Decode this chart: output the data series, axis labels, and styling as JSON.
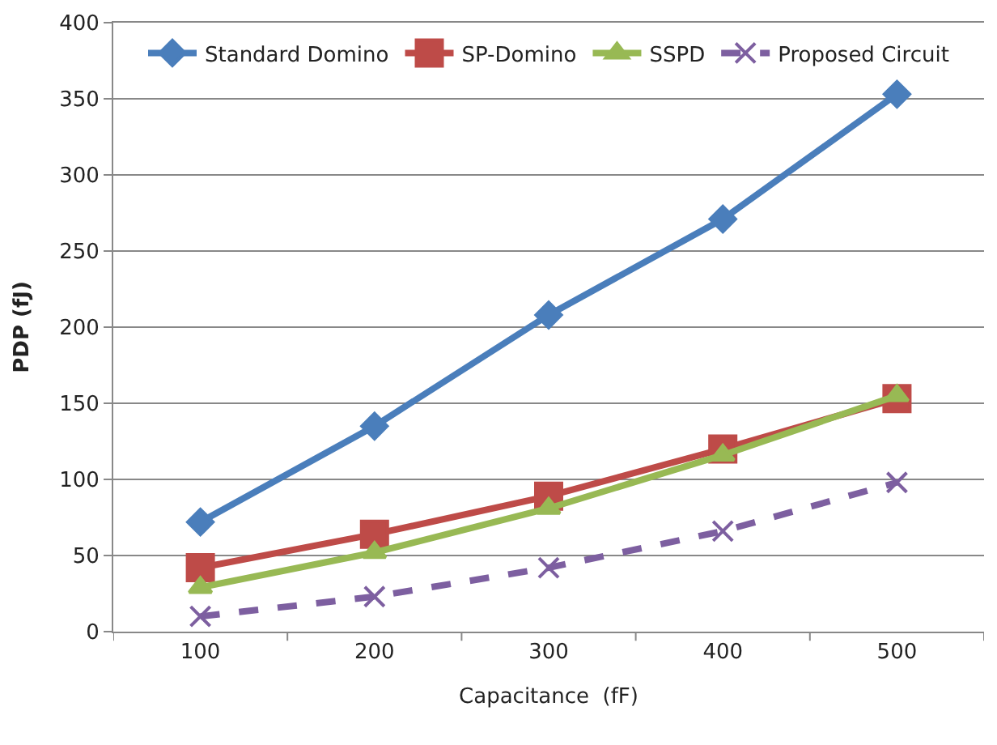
{
  "chart_data": {
    "type": "line",
    "xlabel": "Capacitance  (fF)",
    "ylabel": "PDP (fJ)",
    "categories": [
      "100",
      "200",
      "300",
      "400",
      "500"
    ],
    "ylim": [
      0,
      400
    ],
    "yticks": [
      0,
      50,
      100,
      150,
      200,
      250,
      300,
      350,
      400
    ],
    "grid": "y",
    "legend": "top",
    "series": [
      {
        "name": "Standard Domino",
        "color": "#4a7ebb",
        "marker": "diamond",
        "line_style": "solid",
        "values": [
          72,
          135,
          208,
          271,
          353
        ]
      },
      {
        "name": "SP-Domino",
        "color": "#be4b48",
        "marker": "square",
        "line_style": "solid",
        "values": [
          42,
          64,
          89,
          120,
          153
        ]
      },
      {
        "name": "SSPD",
        "color": "#98b954",
        "marker": "triangle",
        "line_style": "solid",
        "values": [
          29,
          52,
          81,
          116,
          155
        ]
      },
      {
        "name": "Proposed Circuit",
        "color": "#7d5fa0",
        "marker": "cross",
        "line_style": "dashed",
        "values": [
          10,
          23,
          42,
          66,
          98
        ]
      }
    ]
  }
}
